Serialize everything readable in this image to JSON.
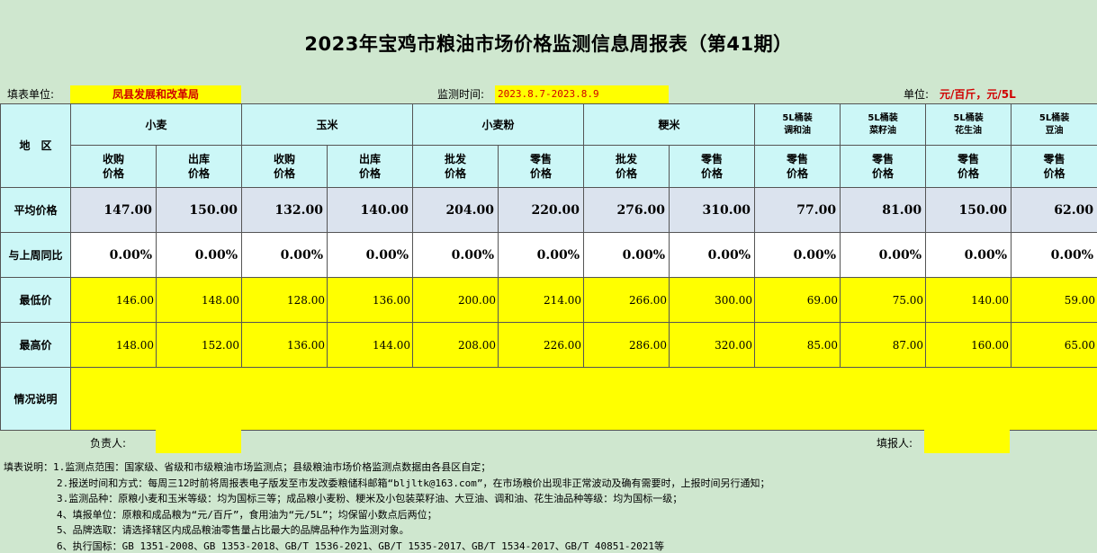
{
  "title": "2023年宝鸡市粮油市场价格监测信息周报表（第41期）",
  "info": {
    "unit_label": "填表单位:",
    "unit_value": "凤县发展和改革局",
    "time_label": "监测时间:",
    "time_value": "2023.8.7-2023.8.9",
    "measure_label": "单位:",
    "measure_value": "元/百斤，元/5L"
  },
  "header": {
    "region": "地　区",
    "groups": [
      "小麦",
      "玉米",
      "小麦粉",
      "粳米"
    ],
    "oil_groups": [
      [
        "5L桶装",
        "调和油"
      ],
      [
        "5L桶装",
        "菜籽油"
      ],
      [
        "5L桶装",
        "花生油"
      ],
      [
        "5L桶装",
        "豆油"
      ]
    ],
    "subs": [
      [
        "收购",
        "价格"
      ],
      [
        "出库",
        "价格"
      ],
      [
        "收购",
        "价格"
      ],
      [
        "出库",
        "价格"
      ],
      [
        "批发",
        "价格"
      ],
      [
        "零售",
        "价格"
      ],
      [
        "批发",
        "价格"
      ],
      [
        "零售",
        "价格"
      ],
      [
        "零售",
        "价格"
      ],
      [
        "零售",
        "价格"
      ],
      [
        "零售",
        "价格"
      ],
      [
        "零售",
        "价格"
      ]
    ]
  },
  "rows": {
    "avg": {
      "label": "平均价格",
      "values": [
        "147.00",
        "150.00",
        "132.00",
        "140.00",
        "204.00",
        "220.00",
        "276.00",
        "310.00",
        "77.00",
        "81.00",
        "150.00",
        "62.00"
      ]
    },
    "change": {
      "label": "与上周同比",
      "values": [
        "0.00%",
        "0.00%",
        "0.00%",
        "0.00%",
        "0.00%",
        "0.00%",
        "0.00%",
        "0.00%",
        "0.00%",
        "0.00%",
        "0.00%",
        "0.00%"
      ]
    },
    "min": {
      "label": "最低价",
      "values": [
        "146.00",
        "148.00",
        "128.00",
        "136.00",
        "200.00",
        "214.00",
        "266.00",
        "300.00",
        "69.00",
        "75.00",
        "140.00",
        "59.00"
      ]
    },
    "max": {
      "label": "最高价",
      "values": [
        "148.00",
        "152.00",
        "136.00",
        "144.00",
        "208.00",
        "226.00",
        "286.00",
        "320.00",
        "85.00",
        "87.00",
        "160.00",
        "65.00"
      ]
    },
    "remark": {
      "label": "情况说明",
      "value": ""
    }
  },
  "footer": {
    "leader_label": "负责人:",
    "leader_value": "",
    "filler_label": "填报人:",
    "filler_value": ""
  },
  "notes": [
    "填表说明：1.监测点范围：国家级、省级和市级粮油市场监测点；县级粮油市场价格监测点数据由各县区自定；",
    "2.报送时间和方式：每周三12时前将周报表电子版发至市发改委粮储科邮箱“bljltk@163.com”，在市场粮价出现非正常波动及确有需要时，上报时间另行通知；",
    "3.监测品种：原粮小麦和玉米等级：均为国标三等；成品粮小麦粉、粳米及小包装菜籽油、大豆油、调和油、花生油品种等级：均为国标一级；",
    "4、填报单位：原粮和成品粮为“元/百斤”，食用油为“元/5L”；均保留小数点后两位；",
    "5、品牌选取：请选择辖区内成品粮油零售量占比最大的品牌品种作为监测对象。",
    "6、执行国标：GB 1351-2008、GB 1353-2018、GB/T 1536-2021、GB/T 1535-2017、GB/T 1534-2017、GB/T 40851-2021等"
  ]
}
